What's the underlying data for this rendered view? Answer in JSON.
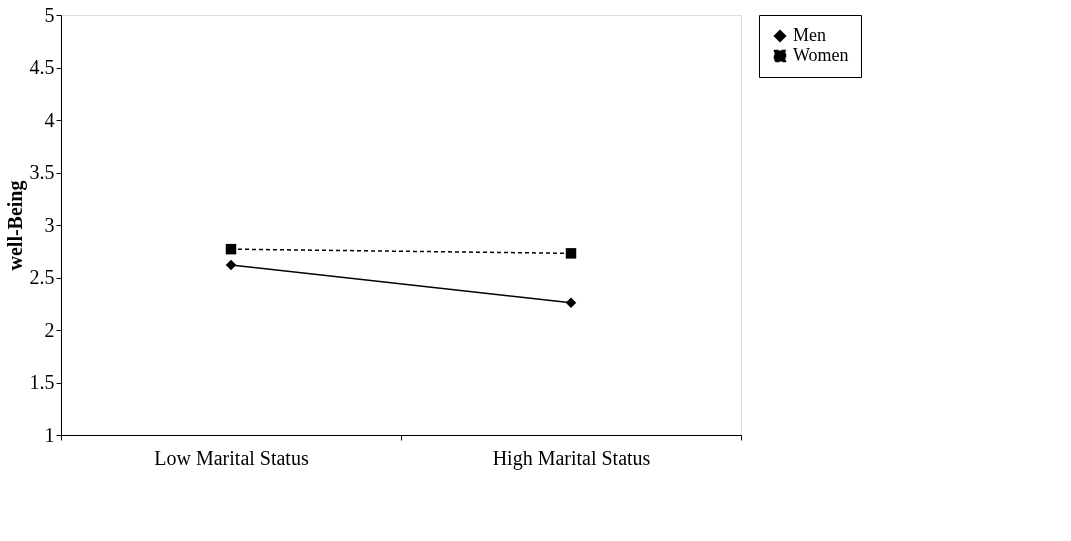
{
  "chart_data": {
    "type": "line",
    "ylabel": "well-Being",
    "categories": [
      "Low Marital Status",
      "High Marital Status"
    ],
    "series": [
      {
        "name": "Men",
        "color": "#000000",
        "values": [
          2.62,
          2.26
        ],
        "marker": "diamond",
        "line_style": "solid"
      },
      {
        "name": "Women",
        "color": "#000000",
        "values": [
          2.77,
          2.73
        ],
        "marker": "square",
        "line_style": "dashed"
      }
    ],
    "ylim": [
      1,
      5
    ],
    "yticks": [
      1,
      1.5,
      2,
      2.5,
      3,
      3.5,
      4,
      4.5,
      5
    ],
    "grid": false,
    "legend": "right"
  }
}
